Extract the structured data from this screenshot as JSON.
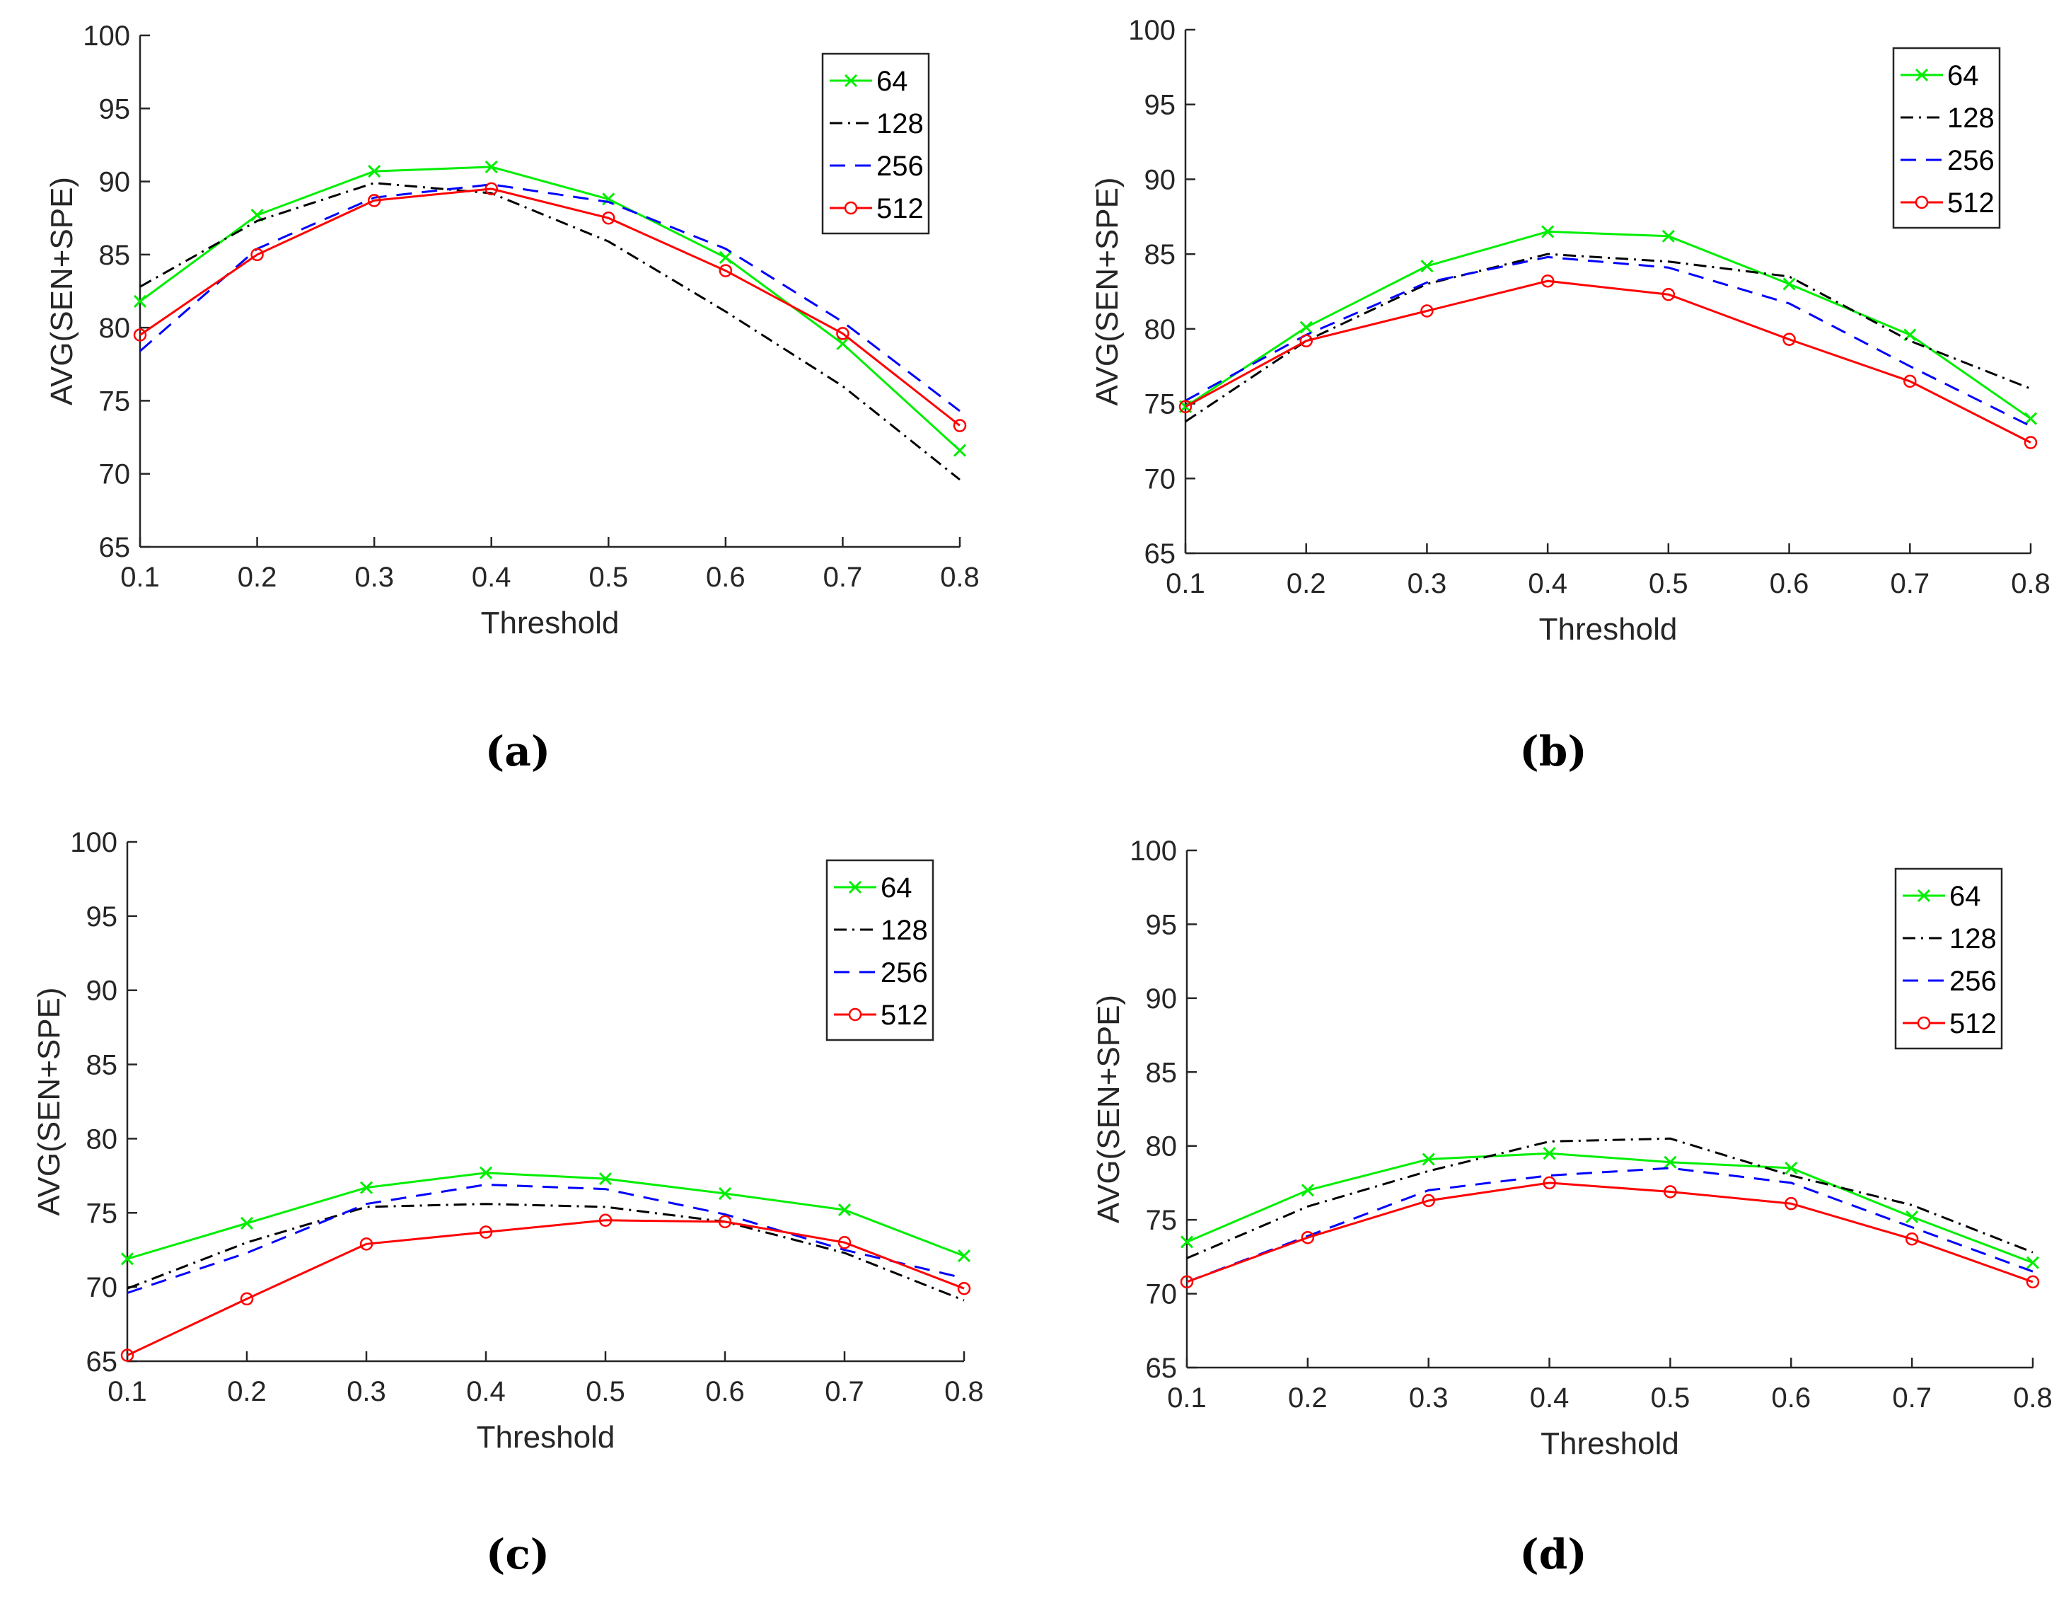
{
  "chart_data": [
    {
      "type": "line",
      "panel_label": "(a)",
      "xlabel": "Threshold",
      "ylabel": "AVG(SEN+SPE)",
      "xlim": [
        0.1,
        0.8
      ],
      "ylim": [
        65,
        100
      ],
      "x": [
        0.1,
        0.2,
        0.3,
        0.4,
        0.5,
        0.6,
        0.7,
        0.8
      ],
      "xticks": [
        "0.1",
        "0.2",
        "0.3",
        "0.4",
        "0.5",
        "0.6",
        "0.7",
        "0.8"
      ],
      "yticks": [
        "65",
        "70",
        "75",
        "80",
        "85",
        "90",
        "95",
        "100"
      ],
      "legend_position": "top-right",
      "series": [
        {
          "name": "64",
          "color": "#00ee00",
          "dash": "",
          "marker": "x",
          "values": [
            81.8,
            87.7,
            90.7,
            91.0,
            88.8,
            84.8,
            78.9,
            71.6
          ]
        },
        {
          "name": "128",
          "color": "#000000",
          "dash": "18 8 3 8",
          "marker": "none",
          "values": [
            82.8,
            87.3,
            89.9,
            89.2,
            85.9,
            81.1,
            76.0,
            69.6
          ]
        },
        {
          "name": "256",
          "color": "#0000ff",
          "dash": "22 14",
          "marker": "none",
          "values": [
            78.4,
            85.4,
            88.9,
            89.8,
            88.6,
            85.4,
            80.4,
            74.3
          ]
        },
        {
          "name": "512",
          "color": "#ff0000",
          "dash": "",
          "marker": "o",
          "values": [
            79.5,
            85.0,
            88.7,
            89.5,
            87.5,
            83.9,
            79.6,
            73.3
          ]
        }
      ]
    },
    {
      "type": "line",
      "panel_label": "(b)",
      "xlabel": "Threshold",
      "ylabel": "AVG(SEN+SPE)",
      "xlim": [
        0.1,
        0.8
      ],
      "ylim": [
        65,
        100
      ],
      "x": [
        0.1,
        0.2,
        0.3,
        0.4,
        0.5,
        0.6,
        0.7,
        0.8
      ],
      "xticks": [
        "0.1",
        "0.2",
        "0.3",
        "0.4",
        "0.5",
        "0.6",
        "0.7",
        "0.8"
      ],
      "yticks": [
        "65",
        "70",
        "75",
        "80",
        "85",
        "90",
        "95",
        "100"
      ],
      "legend_position": "top-right",
      "series": [
        {
          "name": "64",
          "color": "#00ee00",
          "dash": "",
          "marker": "x",
          "values": [
            74.8,
            80.1,
            84.2,
            86.5,
            86.2,
            83.0,
            79.6,
            74.0
          ]
        },
        {
          "name": "128",
          "color": "#000000",
          "dash": "18 8 3 8",
          "marker": "none",
          "values": [
            73.8,
            79.2,
            83.0,
            85.0,
            84.5,
            83.5,
            79.2,
            76.0
          ]
        },
        {
          "name": "256",
          "color": "#0000ff",
          "dash": "22 14",
          "marker": "none",
          "values": [
            75.2,
            79.6,
            83.1,
            84.8,
            84.1,
            81.7,
            77.5,
            73.5
          ]
        },
        {
          "name": "512",
          "color": "#ff0000",
          "dash": "",
          "marker": "o",
          "values": [
            74.8,
            79.2,
            81.2,
            83.2,
            82.3,
            79.3,
            76.5,
            72.4
          ]
        }
      ]
    },
    {
      "type": "line",
      "panel_label": "(c)",
      "xlabel": "Threshold",
      "ylabel": "AVG(SEN+SPE)",
      "xlim": [
        0.1,
        0.8
      ],
      "ylim": [
        65,
        100
      ],
      "x": [
        0.1,
        0.2,
        0.3,
        0.4,
        0.5,
        0.6,
        0.7,
        0.8
      ],
      "xticks": [
        "0.1",
        "0.2",
        "0.3",
        "0.4",
        "0.5",
        "0.6",
        "0.7",
        "0.8"
      ],
      "yticks": [
        "65",
        "70",
        "75",
        "80",
        "85",
        "90",
        "95",
        "100"
      ],
      "legend_position": "top-right",
      "series": [
        {
          "name": "64",
          "color": "#00ee00",
          "dash": "",
          "marker": "x",
          "values": [
            71.9,
            74.3,
            76.7,
            77.7,
            77.3,
            76.3,
            75.2,
            72.1
          ]
        },
        {
          "name": "128",
          "color": "#000000",
          "dash": "18 8 3 8",
          "marker": "none",
          "values": [
            69.9,
            73.0,
            75.4,
            75.6,
            75.4,
            74.4,
            72.3,
            69.1
          ]
        },
        {
          "name": "256",
          "color": "#0000ff",
          "dash": "22 14",
          "marker": "none",
          "values": [
            69.6,
            72.3,
            75.6,
            76.9,
            76.6,
            74.9,
            72.5,
            70.6
          ]
        },
        {
          "name": "512",
          "color": "#ff0000",
          "dash": "",
          "marker": "o",
          "values": [
            65.4,
            69.2,
            72.9,
            73.7,
            74.5,
            74.4,
            73.0,
            69.9
          ]
        }
      ]
    },
    {
      "type": "line",
      "panel_label": "(d)",
      "xlabel": "Threshold",
      "ylabel": "AVG(SEN+SPE)",
      "xlim": [
        0.1,
        0.8
      ],
      "ylim": [
        65,
        100
      ],
      "x": [
        0.1,
        0.2,
        0.3,
        0.4,
        0.5,
        0.6,
        0.7,
        0.8
      ],
      "xticks": [
        "0.1",
        "0.2",
        "0.3",
        "0.4",
        "0.5",
        "0.6",
        "0.7",
        "0.8"
      ],
      "yticks": [
        "65",
        "70",
        "75",
        "80",
        "85",
        "90",
        "95",
        "100"
      ],
      "legend_position": "top-right",
      "series": [
        {
          "name": "64",
          "color": "#00ee00",
          "dash": "",
          "marker": "x",
          "values": [
            73.5,
            77.0,
            79.1,
            79.5,
            78.9,
            78.5,
            75.2,
            72.1
          ]
        },
        {
          "name": "128",
          "color": "#000000",
          "dash": "18 8 3 8",
          "marker": "none",
          "values": [
            72.4,
            75.9,
            78.3,
            80.3,
            80.5,
            78.0,
            76.0,
            72.8
          ]
        },
        {
          "name": "256",
          "color": "#0000ff",
          "dash": "22 14",
          "marker": "none",
          "values": [
            70.8,
            73.9,
            77.0,
            78.0,
            78.5,
            77.5,
            74.5,
            71.5
          ]
        },
        {
          "name": "512",
          "color": "#ff0000",
          "dash": "",
          "marker": "o",
          "values": [
            70.8,
            73.8,
            76.3,
            77.5,
            76.9,
            76.1,
            73.7,
            70.8
          ]
        }
      ]
    }
  ]
}
